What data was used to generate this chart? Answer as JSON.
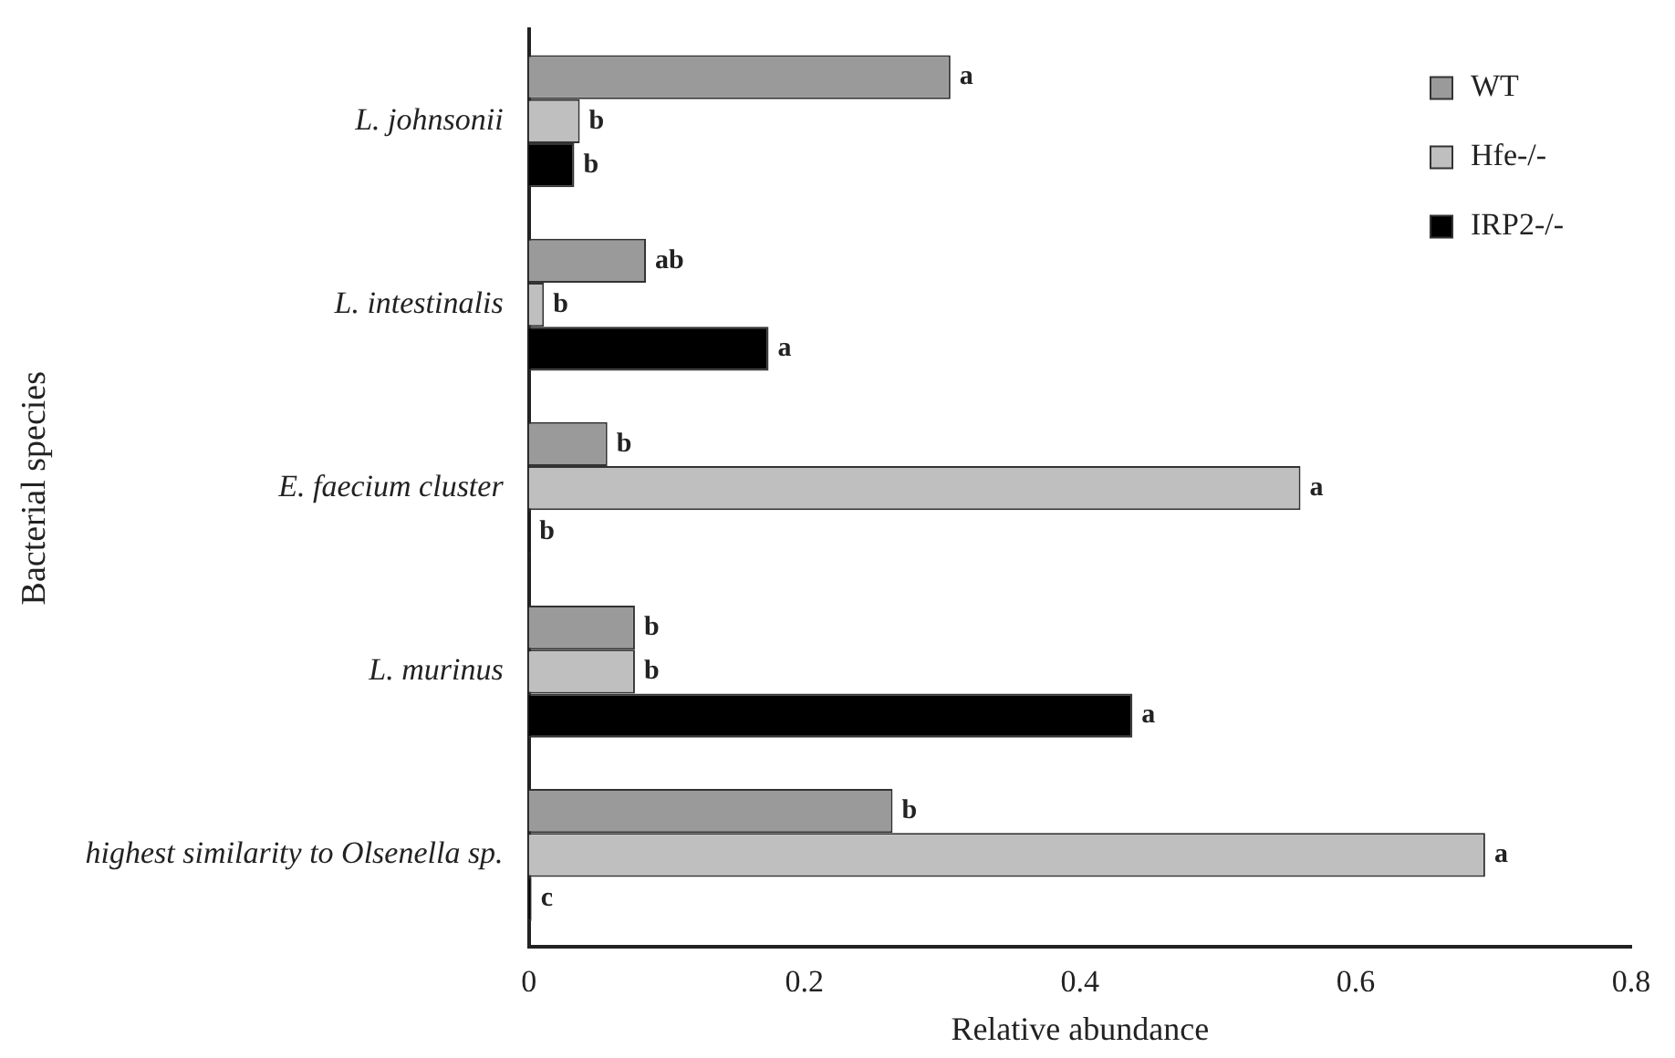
{
  "chart_data": {
    "type": "bar",
    "orientation": "horizontal",
    "xlabel": "Relative abundance",
    "ylabel": "Bacterial species",
    "categories": [
      "L. johnsonii",
      "L. intestinalis",
      "E. faecium cluster",
      "L. murinus",
      "highest similarity to Olsenella sp."
    ],
    "series": [
      {
        "name": "WT",
        "color": "#9a9a9a",
        "values": [
          0.306,
          0.085,
          0.057,
          0.077,
          0.264
        ],
        "value_labels": [
          "a",
          "ab",
          "b",
          "b",
          "b"
        ]
      },
      {
        "name": "Hfe-/-",
        "color": "#bfbfbf",
        "values": [
          0.037,
          0.011,
          0.56,
          0.077,
          0.694
        ],
        "value_labels": [
          "b",
          "b",
          "a",
          "b",
          "a"
        ]
      },
      {
        "name": "IRP2-/-",
        "color": "#000000",
        "values": [
          0.033,
          0.174,
          0.001,
          0.438,
          0.002
        ],
        "value_labels": [
          "b",
          "a",
          "b",
          "a",
          "c"
        ]
      }
    ],
    "xlim": [
      0,
      0.8
    ],
    "xticks": [
      0,
      0.2,
      0.4,
      0.6,
      0.8
    ],
    "grid": false,
    "legend": "top right"
  }
}
